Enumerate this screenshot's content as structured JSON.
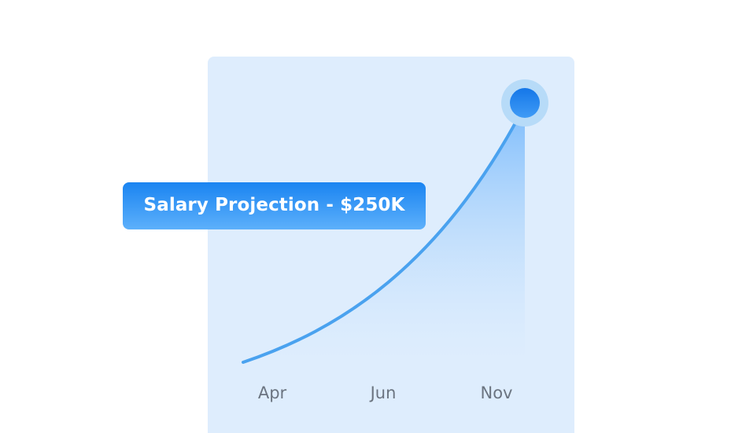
{
  "chart_data": {
    "type": "area",
    "title": "Salary Projection - $250K",
    "categories": [
      "Apr",
      "Jun",
      "Nov"
    ],
    "colors": {
      "line": "#4aa2ef",
      "fill_top": "#7dbcfb",
      "fill_bottom": "#deedfd",
      "marker": "#1a84f1",
      "marker_halo": "#b7dbf8",
      "panel": "#deedfd",
      "label_bg_top": "#1a84f1",
      "label_bg_bottom": "#5db0fb"
    },
    "grid": false,
    "legend": "none",
    "highlight": {
      "category": "Nov",
      "value_label": "$250K"
    }
  }
}
